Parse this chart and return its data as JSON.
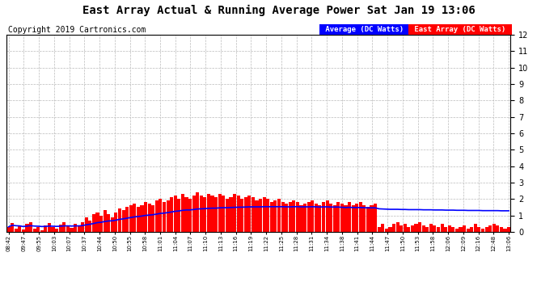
{
  "title": "East Array Actual & Running Average Power Sat Jan 19 13:06",
  "copyright": "Copyright 2019 Cartronics.com",
  "legend_avg": "Average (DC Watts)",
  "legend_east": "East Array (DC Watts)",
  "ylim": [
    0.0,
    12.0
  ],
  "yticks": [
    0.0,
    1.0,
    2.0,
    3.0,
    4.0,
    5.0,
    6.0,
    7.0,
    8.0,
    9.0,
    10.0,
    11.0,
    12.0
  ],
  "xtick_labels": [
    "08:42",
    "09:47",
    "09:55",
    "10:03",
    "10:07",
    "10:37",
    "10:44",
    "10:50",
    "10:55",
    "10:58",
    "11:01",
    "11:04",
    "11:07",
    "11:10",
    "11:13",
    "11:16",
    "11:19",
    "11:22",
    "11:25",
    "11:28",
    "11:31",
    "11:34",
    "11:38",
    "11:41",
    "11:44",
    "11:47",
    "11:50",
    "11:53",
    "11:58",
    "12:06",
    "12:09",
    "12:16",
    "12:48",
    "13:06"
  ],
  "bar_color": "#ff0000",
  "line_color": "#0000ff",
  "legend_avg_bg": "#0000ff",
  "legend_east_bg": "#ff0000",
  "legend_text_color": "#ffffff",
  "title_fontsize": 10,
  "copyright_fontsize": 7,
  "background_color": "#ffffff",
  "grid_color": "#bbbbbb",
  "bar_values": [
    0.3,
    0.55,
    0.2,
    0.4,
    0.15,
    0.5,
    0.6,
    0.2,
    0.3,
    0.1,
    0.4,
    0.55,
    0.3,
    0.2,
    0.45,
    0.6,
    0.35,
    0.25,
    0.5,
    0.4,
    0.6,
    0.9,
    0.7,
    1.1,
    1.2,
    1.0,
    1.3,
    1.1,
    0.9,
    1.2,
    1.4,
    1.3,
    1.5,
    1.6,
    1.7,
    1.5,
    1.6,
    1.8,
    1.7,
    1.6,
    1.9,
    2.0,
    1.8,
    1.9,
    2.1,
    2.2,
    2.0,
    2.3,
    2.1,
    2.0,
    2.2,
    2.4,
    2.2,
    2.1,
    2.3,
    2.2,
    2.1,
    2.3,
    2.2,
    2.0,
    2.1,
    2.3,
    2.2,
    2.0,
    2.1,
    2.2,
    2.1,
    1.9,
    2.0,
    2.1,
    2.0,
    1.8,
    1.9,
    2.0,
    1.8,
    1.7,
    1.8,
    1.9,
    1.8,
    1.6,
    1.7,
    1.8,
    1.9,
    1.7,
    1.6,
    1.8,
    1.9,
    1.7,
    1.6,
    1.8,
    1.7,
    1.6,
    1.8,
    1.6,
    1.7,
    1.8,
    1.6,
    1.5,
    1.6,
    1.7,
    0.3,
    0.5,
    0.2,
    0.3,
    0.5,
    0.6,
    0.4,
    0.5,
    0.3,
    0.4,
    0.5,
    0.6,
    0.4,
    0.3,
    0.5,
    0.4,
    0.3,
    0.5,
    0.3,
    0.4,
    0.3,
    0.2,
    0.3,
    0.4,
    0.2,
    0.3,
    0.5,
    0.3,
    0.2,
    0.3,
    0.4,
    0.5,
    0.4,
    0.3,
    0.2,
    0.3
  ],
  "avg_values": [
    0.3,
    0.4,
    0.37,
    0.36,
    0.32,
    0.35,
    0.37,
    0.35,
    0.34,
    0.32,
    0.33,
    0.35,
    0.34,
    0.33,
    0.34,
    0.36,
    0.36,
    0.35,
    0.36,
    0.36,
    0.38,
    0.43,
    0.46,
    0.51,
    0.56,
    0.58,
    0.63,
    0.66,
    0.67,
    0.71,
    0.76,
    0.79,
    0.83,
    0.87,
    0.91,
    0.93,
    0.96,
    1.0,
    1.02,
    1.04,
    1.08,
    1.12,
    1.14,
    1.17,
    1.21,
    1.25,
    1.27,
    1.31,
    1.33,
    1.33,
    1.36,
    1.39,
    1.4,
    1.41,
    1.43,
    1.44,
    1.44,
    1.46,
    1.47,
    1.47,
    1.48,
    1.49,
    1.5,
    1.5,
    1.51,
    1.52,
    1.52,
    1.52,
    1.52,
    1.53,
    1.53,
    1.53,
    1.53,
    1.53,
    1.53,
    1.52,
    1.52,
    1.53,
    1.53,
    1.52,
    1.52,
    1.52,
    1.53,
    1.52,
    1.51,
    1.52,
    1.52,
    1.51,
    1.51,
    1.51,
    1.49,
    1.48,
    1.49,
    1.48,
    1.48,
    1.48,
    1.47,
    1.46,
    1.46,
    1.46,
    1.4,
    1.39,
    1.38,
    1.37,
    1.37,
    1.37,
    1.36,
    1.36,
    1.35,
    1.35,
    1.35,
    1.35,
    1.34,
    1.34,
    1.34,
    1.33,
    1.33,
    1.33,
    1.32,
    1.32,
    1.32,
    1.31,
    1.31,
    1.31,
    1.3,
    1.3,
    1.3,
    1.3,
    1.29,
    1.29,
    1.29,
    1.29,
    1.29,
    1.28,
    1.28,
    1.28
  ]
}
